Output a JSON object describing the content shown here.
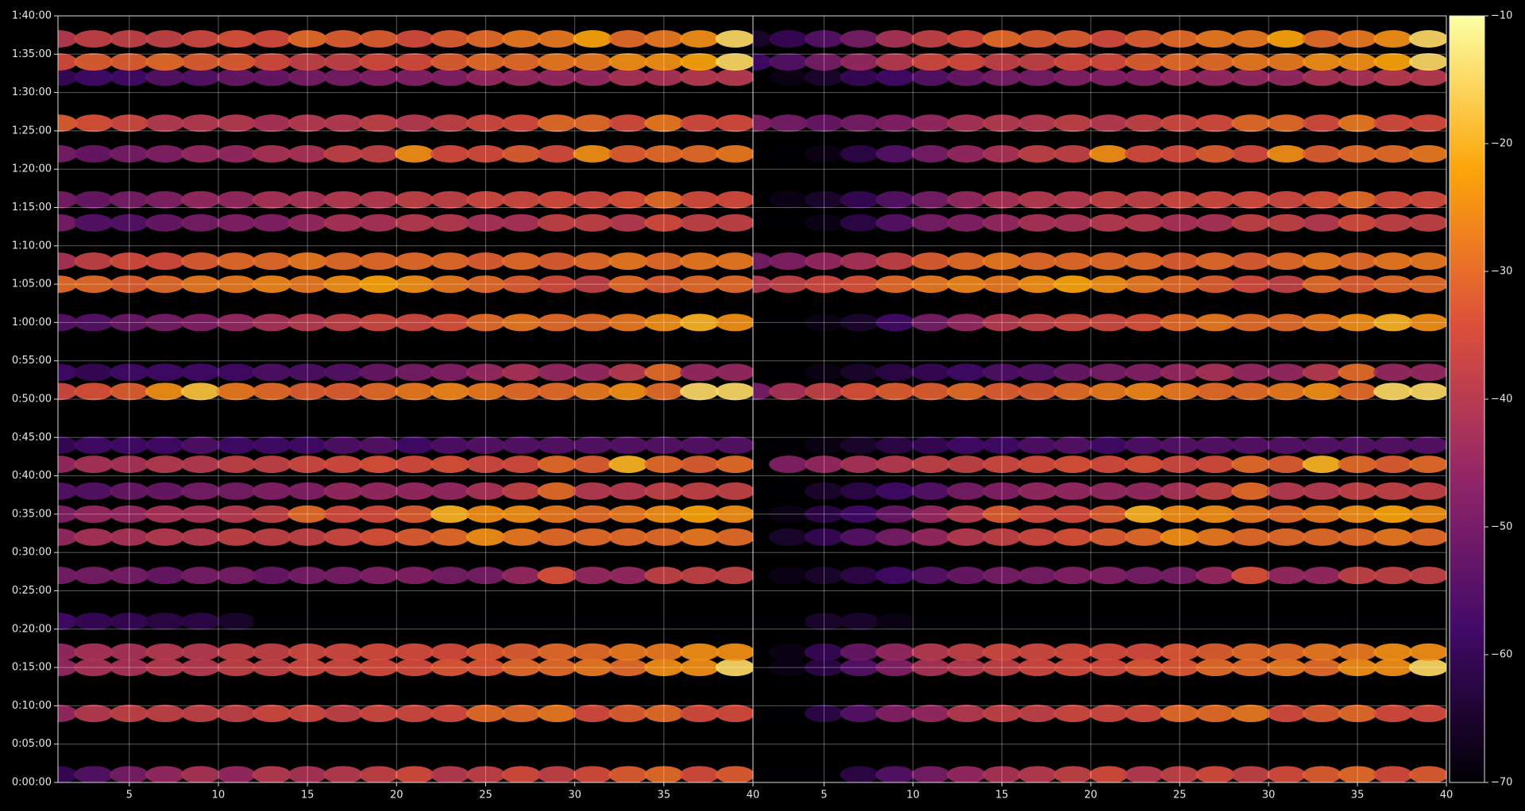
{
  "chart_data": [
    {
      "type": "heatmap",
      "x": [
        1,
        3,
        5,
        7,
        9,
        11,
        13,
        15,
        17,
        19,
        21,
        23,
        25,
        27,
        29,
        31,
        33,
        35,
        37,
        39
      ],
      "y": [
        60,
        540,
        900,
        1020,
        1260,
        1620,
        1920,
        2100,
        2280,
        2490,
        2640,
        3060,
        3210,
        3600,
        3900,
        4080,
        4380,
        4560,
        4920,
        5160,
        5520,
        5640,
        5820
      ],
      "values": [
        [
          -60,
          -55,
          -50,
          -45,
          -42,
          -45,
          -40,
          -42,
          -40,
          -38,
          -35,
          -40,
          -38,
          -35,
          -38,
          -35,
          -32,
          -30,
          -35,
          -32
        ],
        [
          -45,
          -40,
          -38,
          -38,
          -38,
          -38,
          -36,
          -36,
          -38,
          -36,
          -36,
          -35,
          -30,
          -30,
          -28,
          -35,
          -32,
          -30,
          -35,
          -35
        ],
        [
          -45,
          -42,
          -42,
          -40,
          -40,
          -38,
          -38,
          -36,
          -36,
          -35,
          -35,
          -33,
          -33,
          -30,
          -30,
          -28,
          -30,
          -25,
          -25,
          -15
        ],
        [
          -45,
          -42,
          -42,
          -40,
          -40,
          -38,
          -38,
          -36,
          -36,
          -35,
          -35,
          -35,
          -33,
          -32,
          -30,
          -30,
          -28,
          -28,
          -25,
          -25
        ],
        [
          -58,
          -60,
          -60,
          -62,
          -62,
          -65,
          -70,
          -70,
          -70,
          -70,
          -70,
          -70,
          -70,
          -70,
          -70,
          -70,
          -70,
          -70,
          -70,
          -70
        ],
        [
          -50,
          -50,
          -50,
          -52,
          -50,
          -50,
          -52,
          -50,
          -50,
          -48,
          -48,
          -50,
          -50,
          -45,
          -34,
          -45,
          -45,
          -38,
          -38,
          -38
        ],
        [
          -45,
          -42,
          -42,
          -40,
          -40,
          -38,
          -38,
          -38,
          -36,
          -34,
          -32,
          -30,
          -25,
          -28,
          -30,
          -30,
          -30,
          -30,
          -28,
          -30
        ],
        [
          -48,
          -45,
          -45,
          -42,
          -42,
          -40,
          -38,
          -30,
          -35,
          -35,
          -32,
          -20,
          -25,
          -25,
          -28,
          -30,
          -28,
          -25,
          -22,
          -25
        ],
        [
          -55,
          -55,
          -52,
          -52,
          -50,
          -50,
          -48,
          -48,
          -45,
          -45,
          -45,
          -45,
          -42,
          -38,
          -30,
          -40,
          -40,
          -38,
          -38,
          -38
        ],
        [
          -45,
          -42,
          -42,
          -40,
          -40,
          -38,
          -38,
          -36,
          -35,
          -34,
          -35,
          -34,
          -36,
          -35,
          -30,
          -32,
          -20,
          -30,
          -32,
          -30
        ],
        [
          -60,
          -58,
          -58,
          -58,
          -56,
          -58,
          -58,
          -58,
          -56,
          -55,
          -58,
          -56,
          -55,
          -55,
          -55,
          -55,
          -55,
          -55,
          -55,
          -55
        ],
        [
          -36,
          -34,
          -32,
          -25,
          -18,
          -28,
          -30,
          -32,
          -32,
          -30,
          -28,
          -26,
          -28,
          -30,
          -30,
          -28,
          -25,
          -30,
          -15,
          -15
        ],
        [
          -58,
          -60,
          -58,
          -58,
          -58,
          -58,
          -56,
          -56,
          -55,
          -52,
          -50,
          -48,
          -45,
          -42,
          -45,
          -45,
          -40,
          -30,
          -45,
          -45
        ],
        [
          -55,
          -55,
          -52,
          -50,
          -48,
          -45,
          -42,
          -40,
          -38,
          -36,
          -36,
          -34,
          -30,
          -28,
          -30,
          -30,
          -28,
          -25,
          -20,
          -25
        ],
        [
          -30,
          -30,
          -32,
          -30,
          -28,
          -28,
          -26,
          -28,
          -25,
          -22,
          -25,
          -28,
          -30,
          -32,
          -35,
          -38,
          -30,
          -32,
          -30,
          -30
        ],
        [
          -42,
          -38,
          -35,
          -35,
          -32,
          -30,
          -30,
          -28,
          -30,
          -30,
          -30,
          -30,
          -32,
          -30,
          -32,
          -30,
          -28,
          -30,
          -28,
          -28
        ],
        [
          -50,
          -55,
          -55,
          -52,
          -50,
          -48,
          -48,
          -45,
          -42,
          -42,
          -40,
          -40,
          -42,
          -42,
          -38,
          -38,
          -40,
          -35,
          -38,
          -38
        ],
        [
          -50,
          -52,
          -50,
          -48,
          -45,
          -45,
          -42,
          -42,
          -40,
          -40,
          -38,
          -38,
          -36,
          -36,
          -35,
          -36,
          -34,
          -30,
          -35,
          -35
        ],
        [
          -50,
          -52,
          -50,
          -48,
          -45,
          -45,
          -42,
          -42,
          -38,
          -38,
          -25,
          -35,
          -35,
          -32,
          -35,
          -25,
          -32,
          -30,
          -30,
          -28
        ],
        [
          -32,
          -34,
          -36,
          -40,
          -40,
          -40,
          -42,
          -40,
          -40,
          -38,
          -40,
          -38,
          -36,
          -35,
          -30,
          -30,
          -35,
          -28,
          -35,
          -35
        ],
        [
          -60,
          -58,
          -58,
          -55,
          -55,
          -52,
          -52,
          -50,
          -50,
          -48,
          -48,
          -48,
          -45,
          -45,
          -45,
          -45,
          -42,
          -42,
          -40,
          -40
        ],
        [
          -35,
          -32,
          -32,
          -30,
          -32,
          -32,
          -35,
          -38,
          -38,
          -35,
          -35,
          -32,
          -30,
          -30,
          -28,
          -28,
          -25,
          -25,
          -22,
          -15
        ],
        [
          -40,
          -38,
          -38,
          -38,
          -36,
          -34,
          -35,
          -30,
          -32,
          -32,
          -35,
          -32,
          -30,
          -28,
          -28,
          -22,
          -30,
          -28,
          -25,
          -15
        ]
      ],
      "xlim": [
        1,
        40
      ],
      "xticks": [
        5,
        10,
        15,
        20,
        25,
        30,
        35,
        40
      ],
      "ylim": [
        0,
        6000
      ],
      "yticks": [
        {
          "value": 0,
          "label": "0:00:00"
        },
        {
          "value": 300,
          "label": "0:05:00"
        },
        {
          "value": 600,
          "label": "0:10:00"
        },
        {
          "value": 900,
          "label": "0:15:00"
        },
        {
          "value": 1200,
          "label": "0:20:00"
        },
        {
          "value": 1500,
          "label": "0:25:00"
        },
        {
          "value": 1800,
          "label": "0:30:00"
        },
        {
          "value": 2100,
          "label": "0:35:00"
        },
        {
          "value": 2400,
          "label": "0:40:00"
        },
        {
          "value": 2700,
          "label": "0:45:00"
        },
        {
          "value": 3000,
          "label": "0:50:00"
        },
        {
          "value": 3300,
          "label": "0:55:00"
        },
        {
          "value": 3600,
          "label": "1:00:00"
        },
        {
          "value": 3900,
          "label": "1:05:00"
        },
        {
          "value": 4200,
          "label": "1:10:00"
        },
        {
          "value": 4500,
          "label": "1:15:00"
        },
        {
          "value": 4800,
          "label": "1:20:00"
        },
        {
          "value": 5100,
          "label": "1:25:00"
        },
        {
          "value": 5400,
          "label": "1:30:00"
        },
        {
          "value": 5700,
          "label": "1:35:00"
        },
        {
          "value": 6000,
          "label": "1:40:00"
        }
      ],
      "grid": true
    },
    {
      "type": "heatmap",
      "x": [
        1,
        3,
        5,
        7,
        9,
        11,
        13,
        15,
        17,
        19,
        21,
        23,
        25,
        27,
        29,
        31,
        33,
        35,
        37,
        39
      ],
      "y": [
        60,
        540,
        900,
        1020,
        1260,
        1620,
        1920,
        2100,
        2280,
        2490,
        2640,
        3060,
        3210,
        3600,
        3900,
        4080,
        4380,
        4560,
        4920,
        5160,
        5520,
        5640,
        5820
      ],
      "values": [
        [
          -70,
          -70,
          -70,
          -62,
          -55,
          -50,
          -45,
          -42,
          -40,
          -38,
          -35,
          -40,
          -38,
          -35,
          -38,
          -35,
          -32,
          -30,
          -35,
          -32
        ],
        [
          -70,
          -70,
          -62,
          -55,
          -48,
          -45,
          -40,
          -38,
          -38,
          -36,
          -36,
          -35,
          -30,
          -30,
          -28,
          -35,
          -32,
          -30,
          -35,
          -35
        ],
        [
          -70,
          -68,
          -62,
          -55,
          -48,
          -42,
          -40,
          -38,
          -36,
          -35,
          -35,
          -33,
          -33,
          -30,
          -30,
          -28,
          -30,
          -25,
          -25,
          -15
        ],
        [
          -70,
          -68,
          -60,
          -52,
          -45,
          -40,
          -38,
          -36,
          -36,
          -35,
          -35,
          -35,
          -33,
          -32,
          -30,
          -30,
          -28,
          -28,
          -25,
          -25
        ],
        [
          -70,
          -70,
          -65,
          -65,
          -68,
          -70,
          -70,
          -70,
          -70,
          -70,
          -70,
          -70,
          -70,
          -70,
          -70,
          -70,
          -70,
          -70,
          -70,
          -70
        ],
        [
          -70,
          -68,
          -65,
          -62,
          -58,
          -55,
          -52,
          -50,
          -50,
          -48,
          -48,
          -50,
          -50,
          -45,
          -34,
          -45,
          -45,
          -38,
          -38,
          -38
        ],
        [
          -70,
          -65,
          -60,
          -55,
          -50,
          -45,
          -40,
          -38,
          -36,
          -34,
          -32,
          -30,
          -25,
          -28,
          -30,
          -30,
          -30,
          -30,
          -28,
          -30
        ],
        [
          -70,
          -68,
          -62,
          -58,
          -52,
          -45,
          -40,
          -32,
          -35,
          -35,
          -32,
          -20,
          -25,
          -25,
          -28,
          -30,
          -28,
          -25,
          -22,
          -25
        ],
        [
          -70,
          -70,
          -65,
          -62,
          -58,
          -55,
          -50,
          -48,
          -45,
          -45,
          -45,
          -45,
          -42,
          -38,
          -30,
          -40,
          -40,
          -38,
          -38,
          -38
        ],
        [
          -70,
          -48,
          -45,
          -42,
          -40,
          -38,
          -38,
          -36,
          -35,
          -34,
          -35,
          -34,
          -36,
          -35,
          -30,
          -32,
          -20,
          -30,
          -32,
          -30
        ],
        [
          -70,
          -70,
          -68,
          -65,
          -62,
          -60,
          -58,
          -58,
          -56,
          -55,
          -58,
          -56,
          -55,
          -55,
          -55,
          -55,
          -55,
          -55,
          -55,
          -55
        ],
        [
          -50,
          -42,
          -38,
          -34,
          -32,
          -32,
          -30,
          -32,
          -32,
          -30,
          -28,
          -26,
          -28,
          -30,
          -30,
          -28,
          -25,
          -30,
          -15,
          -15
        ],
        [
          -70,
          -70,
          -68,
          -65,
          -62,
          -60,
          -58,
          -56,
          -55,
          -52,
          -50,
          -48,
          -45,
          -42,
          -45,
          -45,
          -40,
          -30,
          -45,
          -45
        ],
        [
          -70,
          -70,
          -68,
          -65,
          -58,
          -50,
          -45,
          -40,
          -38,
          -36,
          -36,
          -34,
          -30,
          -28,
          -30,
          -30,
          -28,
          -25,
          -20,
          -25
        ],
        [
          -40,
          -38,
          -36,
          -34,
          -30,
          -28,
          -26,
          -28,
          -25,
          -22,
          -25,
          -28,
          -30,
          -32,
          -35,
          -38,
          -30,
          -32,
          -30,
          -30
        ],
        [
          -50,
          -48,
          -45,
          -42,
          -38,
          -32,
          -30,
          -28,
          -30,
          -30,
          -30,
          -30,
          -32,
          -30,
          -32,
          -30,
          -28,
          -30,
          -28,
          -28
        ],
        [
          -70,
          -70,
          -68,
          -62,
          -55,
          -50,
          -48,
          -45,
          -42,
          -42,
          -40,
          -40,
          -42,
          -42,
          -38,
          -38,
          -40,
          -35,
          -38,
          -38
        ],
        [
          -70,
          -68,
          -65,
          -60,
          -55,
          -50,
          -45,
          -42,
          -40,
          -40,
          -38,
          -38,
          -36,
          -36,
          -35,
          -36,
          -34,
          -30,
          -35,
          -35
        ],
        [
          -70,
          -70,
          -68,
          -62,
          -55,
          -50,
          -45,
          -42,
          -38,
          -38,
          -25,
          -35,
          -35,
          -32,
          -35,
          -25,
          -32,
          -30,
          -30,
          -28
        ],
        [
          -48,
          -50,
          -52,
          -50,
          -48,
          -45,
          -42,
          -40,
          -40,
          -38,
          -40,
          -38,
          -36,
          -35,
          -30,
          -30,
          -35,
          -28,
          -35,
          -35
        ],
        [
          -70,
          -68,
          -65,
          -60,
          -58,
          -55,
          -52,
          -50,
          -50,
          -48,
          -48,
          -48,
          -45,
          -45,
          -45,
          -45,
          -42,
          -42,
          -40,
          -40
        ],
        [
          -58,
          -55,
          -50,
          -45,
          -40,
          -36,
          -35,
          -38,
          -38,
          -35,
          -35,
          -32,
          -30,
          -30,
          -28,
          -28,
          -25,
          -25,
          -22,
          -15
        ],
        [
          -65,
          -60,
          -55,
          -50,
          -42,
          -38,
          -35,
          -30,
          -32,
          -32,
          -35,
          -32,
          -30,
          -28,
          -28,
          -22,
          -30,
          -28,
          -25,
          -15
        ]
      ],
      "xlim": [
        1,
        40
      ],
      "xticks": [
        5,
        10,
        15,
        20,
        25,
        30,
        35,
        40
      ],
      "ylim": [
        0,
        6000
      ],
      "grid": true
    }
  ],
  "colorbar": {
    "lim": [
      -70,
      -10
    ],
    "ticks": [
      {
        "value": -70,
        "label": "−70"
      },
      {
        "value": -60,
        "label": "−60"
      },
      {
        "value": -50,
        "label": "−50"
      },
      {
        "value": -40,
        "label": "−40"
      },
      {
        "value": -30,
        "label": "−30"
      },
      {
        "value": -20,
        "label": "−20"
      },
      {
        "value": -10,
        "label": "−10"
      }
    ],
    "colormap": [
      "#000004",
      "#420a68",
      "#932667",
      "#dd513a",
      "#fca50a",
      "#fcffa4"
    ]
  }
}
